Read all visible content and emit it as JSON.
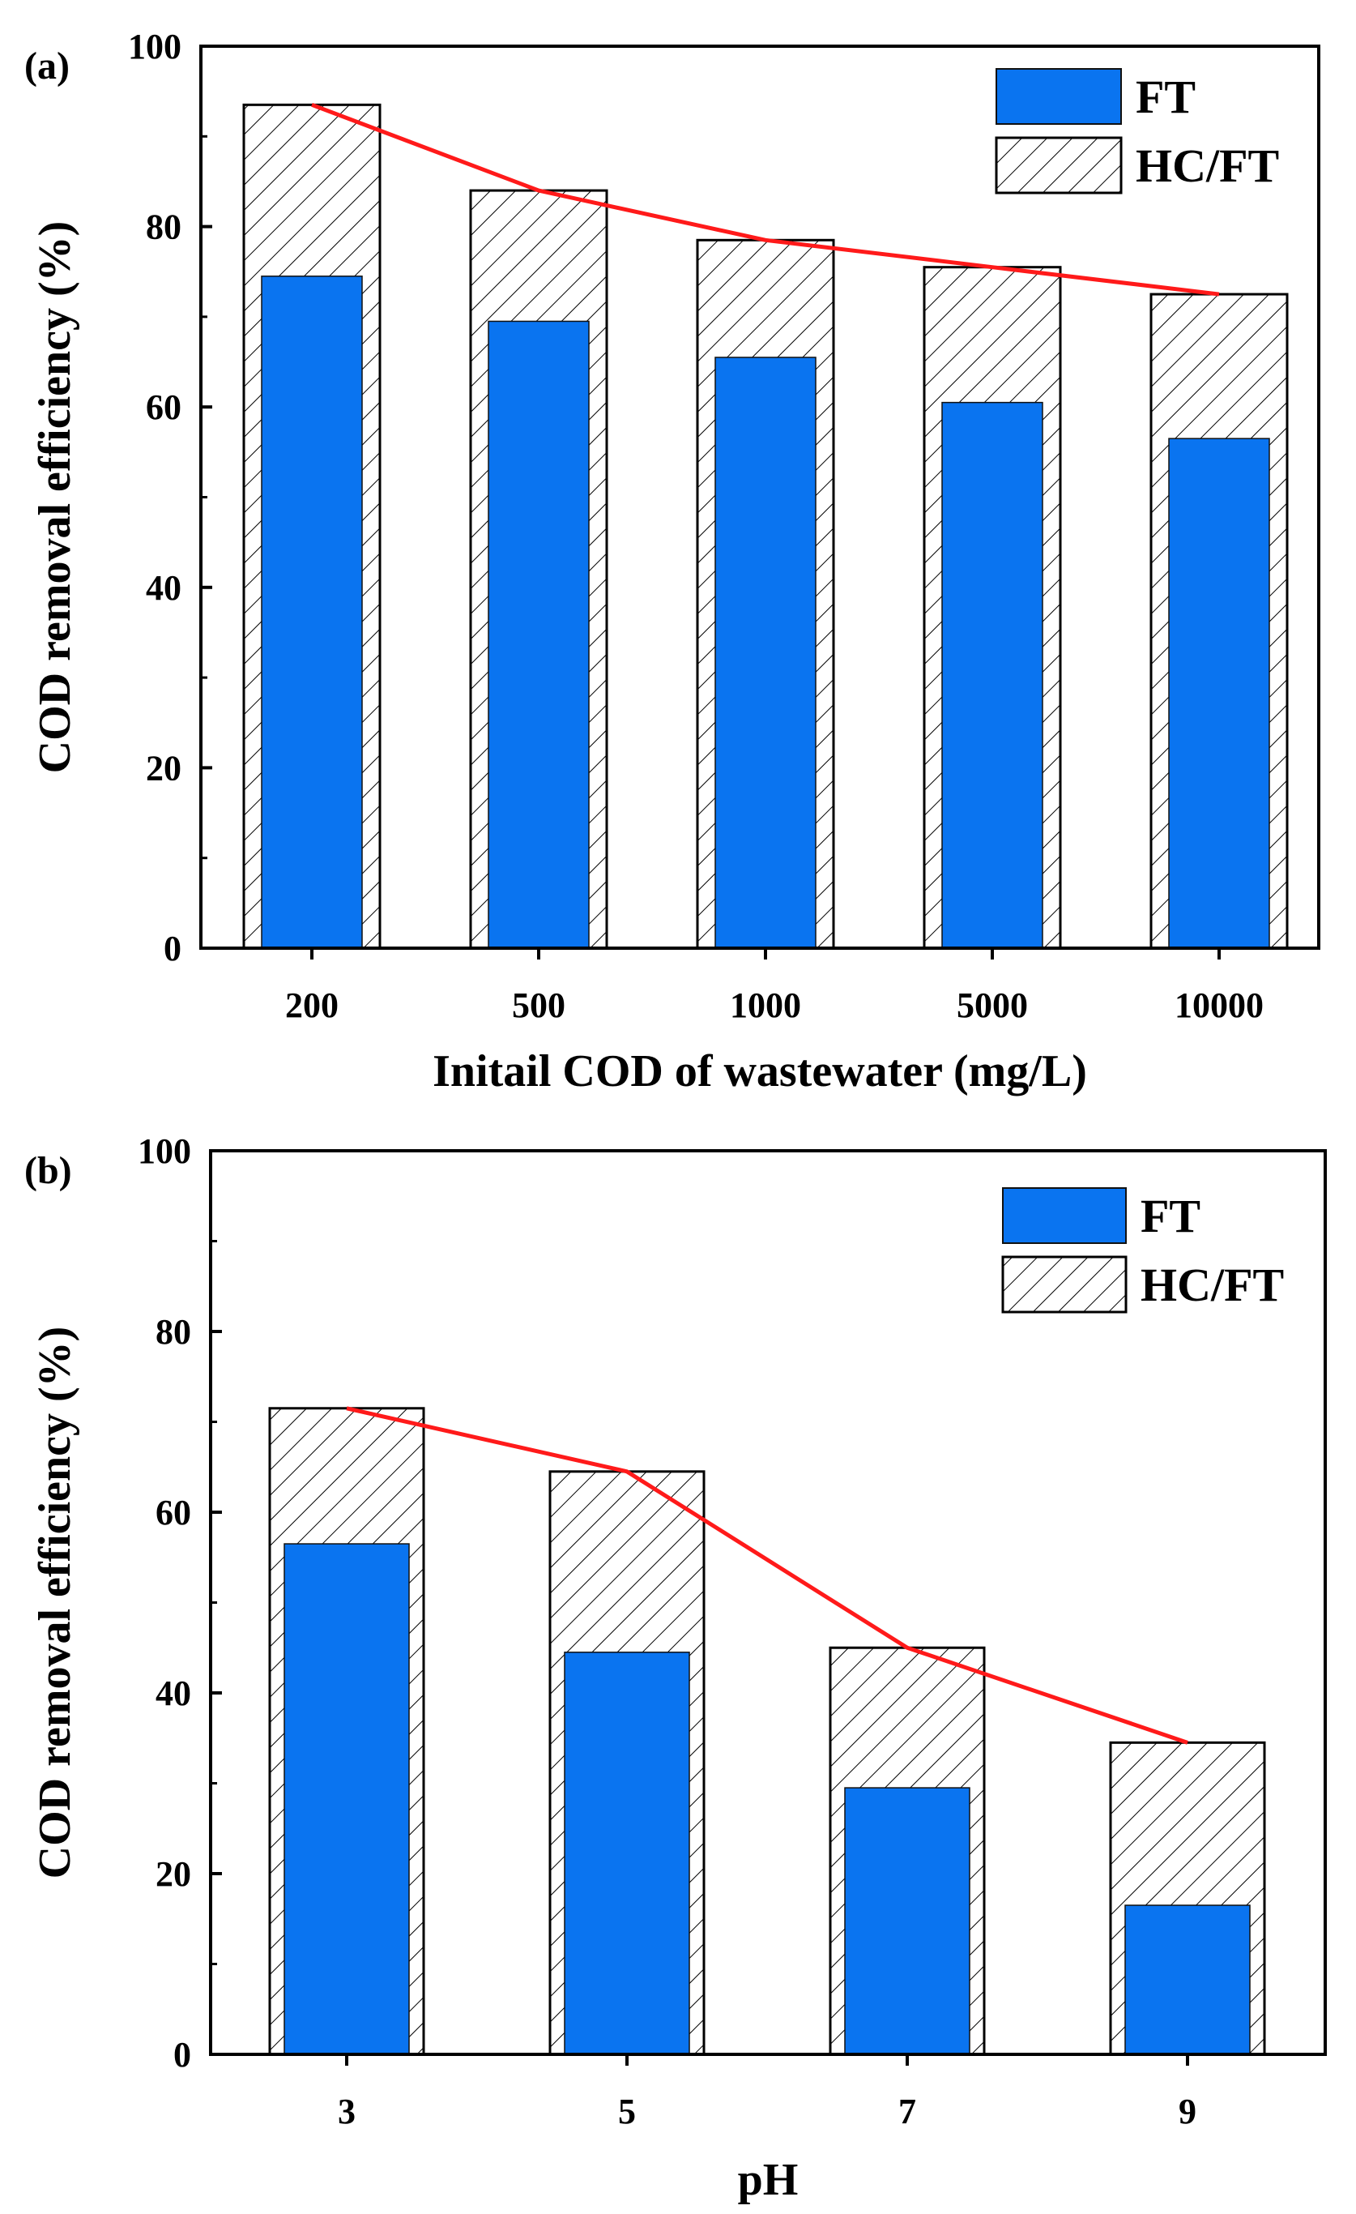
{
  "colors": {
    "ft": "#0a74f0",
    "hcft_hatch": "#000000",
    "trend": "#ff1a1a",
    "axis": "#000000"
  },
  "chart_data": [
    {
      "type": "bar",
      "panel_label": "(a)",
      "title": "",
      "xlabel": "Initail COD of wastewater (mg/L)",
      "ylabel": "COD removal efficiency (%)",
      "ylim": [
        0,
        100
      ],
      "yticks": [
        0,
        20,
        40,
        60,
        80,
        100
      ],
      "categories": [
        "200",
        "500",
        "1000",
        "5000",
        "10000"
      ],
      "series": [
        {
          "name": "FT",
          "values": [
            74.5,
            69.5,
            65.5,
            60.5,
            56.5
          ]
        },
        {
          "name": "HC/FT",
          "values": [
            93.5,
            84.0,
            78.5,
            75.5,
            72.5
          ]
        }
      ],
      "trend_line": {
        "follows": "HC/FT",
        "color": "#ff1a1a"
      },
      "legend": {
        "position": "top-right",
        "entries": [
          "FT",
          "HC/FT"
        ]
      },
      "grid": false
    },
    {
      "type": "bar",
      "panel_label": "(b)",
      "title": "",
      "xlabel": "pH",
      "ylabel": "COD removal efficiency (%)",
      "ylim": [
        0,
        100
      ],
      "yticks": [
        0,
        20,
        40,
        60,
        80,
        100
      ],
      "categories": [
        "3",
        "5",
        "7",
        "9"
      ],
      "series": [
        {
          "name": "FT",
          "values": [
            56.5,
            44.5,
            29.5,
            16.5
          ]
        },
        {
          "name": "HC/FT",
          "values": [
            71.5,
            64.5,
            45.0,
            34.5
          ]
        }
      ],
      "trend_line": {
        "follows": "HC/FT",
        "color": "#ff1a1a"
      },
      "legend": {
        "position": "top-right",
        "entries": [
          "FT",
          "HC/FT"
        ]
      },
      "grid": false
    }
  ]
}
